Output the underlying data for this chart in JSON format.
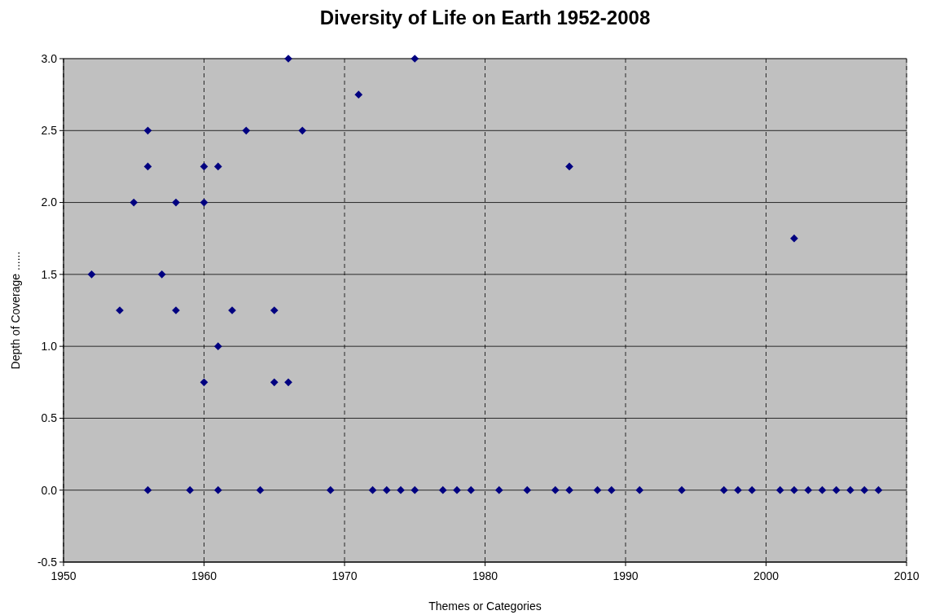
{
  "chart_data": {
    "type": "scatter",
    "title": "Diversity of Life on Earth 1952-2008",
    "xlabel": "Themes or Categories",
    "ylabel": "Depth of Coverage ......",
    "series": [
      {
        "color": "#000080",
        "x": [
          1952,
          1954,
          1955,
          1956,
          1956,
          1956,
          1957,
          1958,
          1958,
          1959,
          1960,
          1960,
          1960,
          1961,
          1961,
          1961,
          1962,
          1963,
          1964,
          1965,
          1965,
          1966,
          1966,
          1967,
          1969,
          1971,
          1972,
          1973,
          1974,
          1975,
          1975,
          1977,
          1978,
          1979,
          1981,
          1983,
          1985,
          1986,
          1986,
          1988,
          1989,
          1991,
          1994,
          1997,
          1998,
          1999,
          2001,
          2002,
          2002,
          2003,
          2004,
          2005,
          2006,
          2007,
          2008
        ],
        "values": [
          1.5,
          1.25,
          2.0,
          2.5,
          2.25,
          0,
          1.5,
          2.0,
          1.25,
          0,
          2.25,
          2.0,
          0.75,
          2.25,
          1.0,
          0,
          1.25,
          2.5,
          0,
          1.25,
          0.75,
          3.0,
          0.75,
          2.5,
          0,
          2.75,
          0,
          0,
          0,
          3.0,
          0,
          0,
          0,
          0,
          0,
          0,
          0,
          2.25,
          0,
          0,
          0,
          0,
          0,
          0,
          0,
          0,
          0,
          1.75,
          0,
          0,
          0,
          0,
          0,
          0,
          0
        ]
      }
    ],
    "xlim": [
      1950,
      2010
    ],
    "xticks": [
      1950,
      1960,
      1970,
      1980,
      1990,
      2000,
      2010
    ],
    "ylim": [
      -0.5,
      3.0
    ],
    "yticks": [
      {
        "value": -0.5,
        "label": "-0.5"
      },
      {
        "value": 0,
        "label": "0.0"
      },
      {
        "value": 0.5,
        "label": "0.5"
      },
      {
        "value": 1,
        "label": "1.0"
      },
      {
        "value": 1.5,
        "label": "1.5"
      },
      {
        "value": 2,
        "label": "2.0"
      },
      {
        "value": 2.5,
        "label": "2.5"
      },
      {
        "value": 3,
        "label": "3.0"
      }
    ],
    "grid": true,
    "marker": "diamond"
  }
}
